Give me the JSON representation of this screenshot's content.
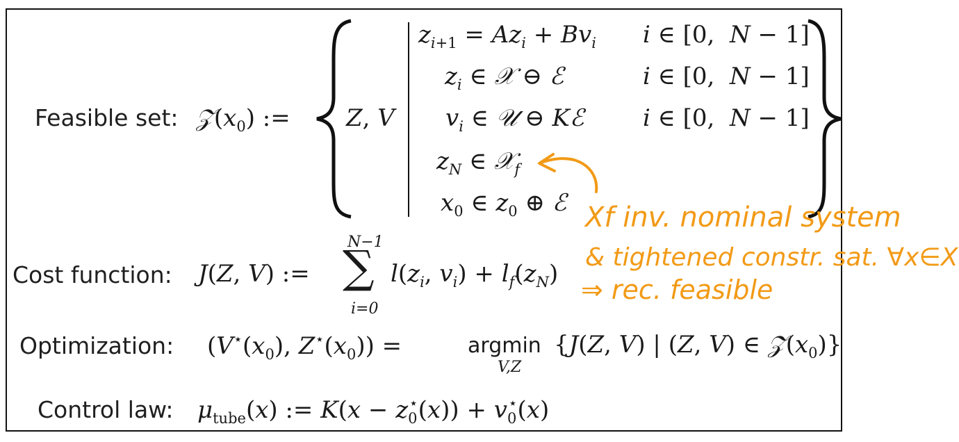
{
  "labels": {
    "feasible": "Feasible set:",
    "cost": "Cost function:",
    "optimization": "Optimization:",
    "control": "Control law:"
  },
  "feasible_set": {
    "lhs": "𝒵(x₀) :=",
    "vars": "Z, V",
    "constraints": [
      {
        "expr": "z_{i+1} = Az_i + Bv_i",
        "range": "i ∈ [0,  N − 1]"
      },
      {
        "expr": "z_i ∈ 𝒳 ⊖ ℰ",
        "range": "i ∈ [0,  N − 1]"
      },
      {
        "expr": "v_i ∈ 𝒰 ⊖ Kℰ",
        "range": "i ∈ [0,  N − 1]"
      },
      {
        "expr": "z_N ∈ 𝒳_f",
        "range": ""
      },
      {
        "expr": "x_0 ∈ z_0 ⊕ ℰ",
        "range": ""
      }
    ]
  },
  "cost_function": {
    "lhs": "J(Z, V) :=",
    "sum_upper": "N−1",
    "sum_lower": "i=0",
    "sum_symbol": "∑",
    "rhs": "l(z_i, v_i) + l_f(z_N)"
  },
  "optimization": {
    "lhs": "(V*(x₀), Z*(x₀)) =",
    "operator": "argmin",
    "operator_sub": "V,Z",
    "rhs": "{J(Z, V) | (Z, V) ∈ 𝒵(x₀)}"
  },
  "control_law": {
    "expr": "μ_tube(x) := K(x − z₀*(x)) + v₀*(x)"
  },
  "annotation": {
    "color": "#f29a16",
    "lines": [
      "Xf inv. nominal system",
      "& tightened constr. sat. ∀x∈Xf",
      "⇒ rec. feasible"
    ]
  }
}
